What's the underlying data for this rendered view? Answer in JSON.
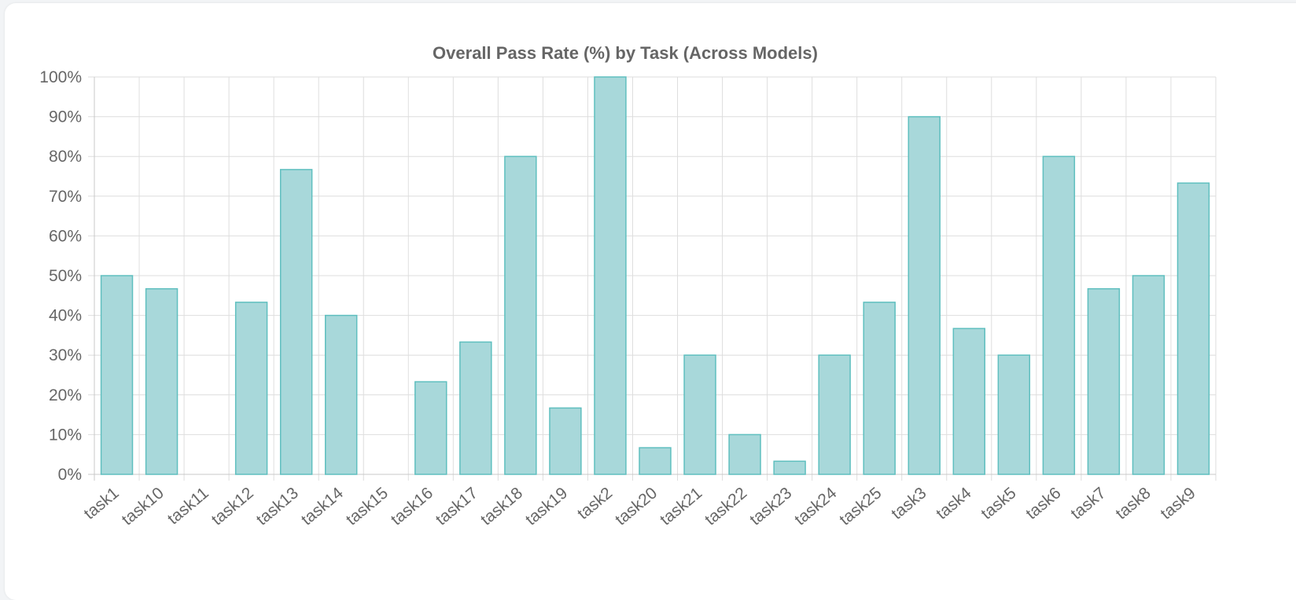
{
  "chart_data": {
    "type": "bar",
    "title": "Overall Pass Rate (%) by Task (Across Models)",
    "xlabel": "",
    "ylabel": "",
    "ylim": [
      0,
      100
    ],
    "ytick_step": 10,
    "ytick_suffix": "%",
    "grid": true,
    "legend": "none",
    "categories": [
      "task1",
      "task10",
      "task11",
      "task12",
      "task13",
      "task14",
      "task15",
      "task16",
      "task17",
      "task18",
      "task19",
      "task2",
      "task20",
      "task21",
      "task22",
      "task23",
      "task24",
      "task25",
      "task3",
      "task4",
      "task5",
      "task6",
      "task7",
      "task8",
      "task9"
    ],
    "values": [
      50,
      46.7,
      0,
      43.3,
      76.7,
      40,
      0,
      23.3,
      33.3,
      80,
      16.7,
      100,
      6.7,
      30,
      10,
      3.3,
      30,
      43.3,
      90,
      36.7,
      30,
      80,
      46.7,
      50,
      73.3
    ],
    "bar_fill": "#a8d8da",
    "bar_stroke": "#5fbfbf"
  }
}
